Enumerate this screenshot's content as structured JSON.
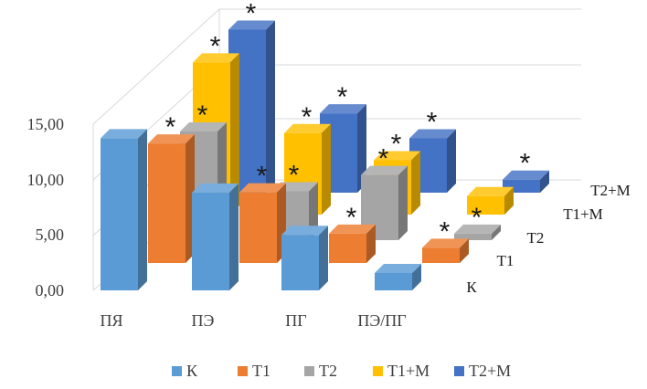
{
  "chart_data": {
    "type": "bar",
    "subtype": "3d-clustered",
    "title": "",
    "categories": [
      "ПЯ",
      "ПЭ",
      "ПГ",
      "ПЭ/ПГ"
    ],
    "y_ticks": [
      "0,00",
      "5,00",
      "10,00",
      "15,00"
    ],
    "ylim": [
      0,
      17
    ],
    "series": [
      {
        "name": "К",
        "color": "#5b9bd5",
        "values": [
          14.0,
          9.0,
          5.1,
          1.6
        ],
        "significant": [
          false,
          false,
          false,
          false
        ]
      },
      {
        "name": "Т1",
        "color": "#ed7d31",
        "values": [
          11.0,
          6.5,
          2.7,
          1.4
        ],
        "significant": [
          true,
          true,
          true,
          true
        ]
      },
      {
        "name": "Т2",
        "color": "#a5a5a5",
        "values": [
          10.0,
          4.5,
          6.0,
          0.6
        ],
        "significant": [
          true,
          true,
          true,
          true
        ]
      },
      {
        "name": "Т1+М",
        "color": "#ffc000",
        "values": [
          14.0,
          7.5,
          5.0,
          1.7
        ],
        "significant": [
          true,
          true,
          true,
          false
        ]
      },
      {
        "name": "Т2+М",
        "color": "#4472c4",
        "values": [
          15.0,
          7.3,
          5.0,
          1.2
        ],
        "significant": [
          true,
          true,
          true,
          true
        ]
      }
    ],
    "legend_position": "bottom",
    "significance_marker": "*",
    "grid": true
  }
}
